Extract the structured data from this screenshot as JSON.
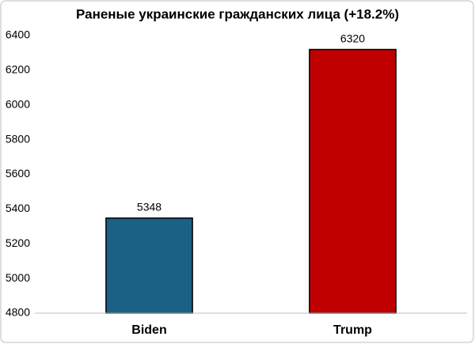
{
  "chart_data": {
    "type": "bar",
    "title": "Раненые украинские гражданских лица  (+18.2%)",
    "categories": [
      "Biden",
      "Trump"
    ],
    "values": [
      5348,
      6320
    ],
    "colors": [
      "#1b6186",
      "#c00000"
    ],
    "ylim": [
      4800,
      6400
    ],
    "yticks": [
      4800,
      5000,
      5200,
      5400,
      5600,
      5800,
      6000,
      6200,
      6400
    ],
    "grid": false
  }
}
